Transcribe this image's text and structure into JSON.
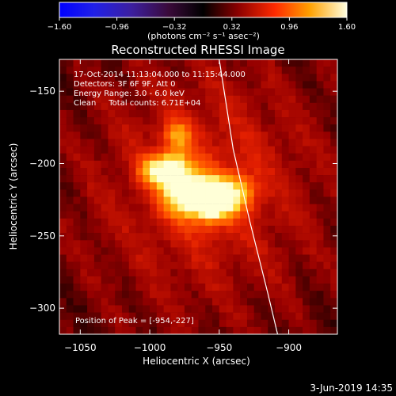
{
  "chart_data": {
    "type": "heatmap",
    "title": "Reconstructed RHESSI Image",
    "xlabel": "Heliocentric X (arcsec)",
    "ylabel": "Heliocentric Y (arcsec)",
    "xlim": [
      -1065,
      -865
    ],
    "ylim": [
      -318,
      -128
    ],
    "x_ticks": [
      -1050,
      -1000,
      -950,
      -900
    ],
    "x_tick_labels": [
      "−1050",
      "−1000",
      "−950",
      "−900"
    ],
    "y_ticks": [
      -150,
      -200,
      -250,
      -300
    ],
    "y_tick_labels": [
      "−150",
      "−200",
      "−250",
      "−300"
    ],
    "colorbar": {
      "range": [
        -1.6,
        1.6
      ],
      "ticks": [
        -1.6,
        -0.96,
        -0.32,
        0.32,
        0.96,
        1.6
      ],
      "tick_labels": [
        "−1.60",
        "−0.96",
        "−0.32",
        "0.32",
        "0.96",
        "1.60"
      ],
      "unit_label": "(photons cm⁻² s⁻¹ asec⁻²)"
    },
    "annotations": [
      "17-Oct-2014 11:13:04.000 to 11:15:44.000",
      "Detectors: 3F 6F 9F, Att 0",
      "Energy Range: 3.0 - 6.0 keV",
      "Clean     Total counts: 6.71E+04"
    ],
    "peak_label": "Position of Peak = [-954,-227]",
    "peak_position": [
      -954,
      -227
    ],
    "sources": [
      {
        "x": -985,
        "y": -203,
        "sigma": 9,
        "amp": 1.0
      },
      {
        "x": -975,
        "y": -220,
        "sigma": 11,
        "amp": 1.1
      },
      {
        "x": -955,
        "y": -226,
        "sigma": 10,
        "amp": 1.35
      },
      {
        "x": -935,
        "y": -220,
        "sigma": 9,
        "amp": 0.7
      },
      {
        "x": -980,
        "y": -180,
        "sigma": 7,
        "amp": 0.6
      },
      {
        "x": -1000,
        "y": -205,
        "sigma": 7,
        "amp": 0.55
      }
    ],
    "limb_curve": [
      [
        -950,
        -128
      ],
      [
        -940,
        -190
      ],
      [
        -928,
        -240
      ],
      [
        -915,
        -290
      ],
      [
        -908,
        -318
      ]
    ]
  },
  "footer_date": "3-Jun-2019 14:35"
}
